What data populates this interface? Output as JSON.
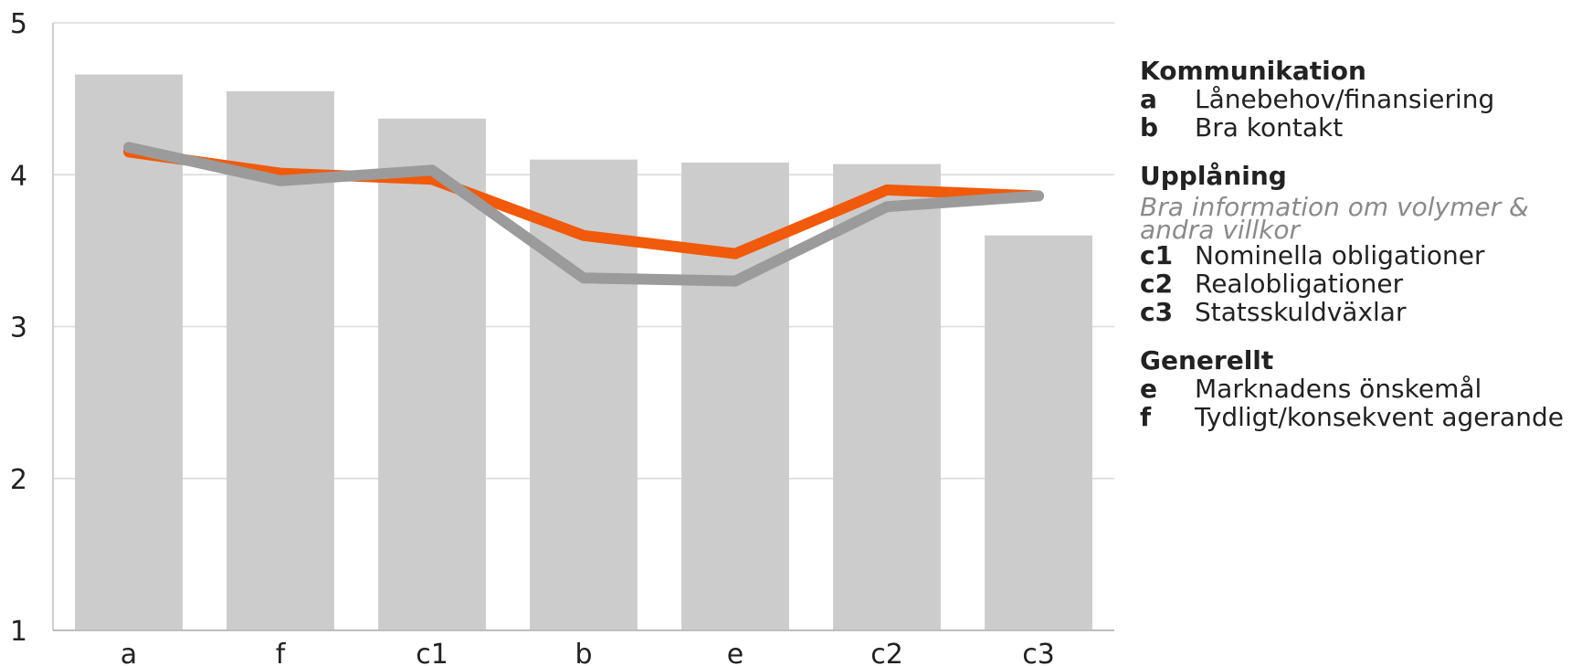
{
  "chart_data": {
    "type": "bar",
    "categories": [
      "a",
      "f",
      "c1",
      "b",
      "e",
      "c2",
      "c3"
    ],
    "bars": {
      "values": [
        4.66,
        4.55,
        4.37,
        4.1,
        4.08,
        4.07,
        3.6
      ],
      "color": "#cccccc"
    },
    "series": [
      {
        "type": "line",
        "values": [
          4.15,
          4.01,
          3.97,
          3.6,
          3.48,
          3.9,
          3.86
        ],
        "color": "#f05a0a"
      },
      {
        "type": "line",
        "values": [
          4.18,
          3.96,
          4.03,
          3.32,
          3.3,
          3.79,
          3.86
        ],
        "color": "#9b9b9b"
      }
    ],
    "ylim": [
      1,
      5
    ],
    "yticks": [
      "1",
      "2",
      "3",
      "4",
      "5"
    ],
    "grid": true,
    "gridColor": "#d9d9d9"
  },
  "legend": {
    "groups": [
      {
        "title": "Kommunikation",
        "entries": [
          {
            "key": "a",
            "label": "Lånebehov/finansiering"
          },
          {
            "key": "b",
            "label": "Bra kontakt"
          }
        ]
      },
      {
        "title": "Upplåning",
        "subtitle": "Bra information om volymer & andra villkor",
        "entries": [
          {
            "key": "c1",
            "label": "Nominella obligationer"
          },
          {
            "key": "c2",
            "label": "Realobligationer"
          },
          {
            "key": "c3",
            "label": "Statsskuldväxlar"
          }
        ]
      },
      {
        "title": "Generellt",
        "entries": [
          {
            "key": "e",
            "label": "Marknadens önskemål"
          },
          {
            "key": "f",
            "label": "Tydligt/konsekvent agerande"
          }
        ]
      }
    ]
  }
}
